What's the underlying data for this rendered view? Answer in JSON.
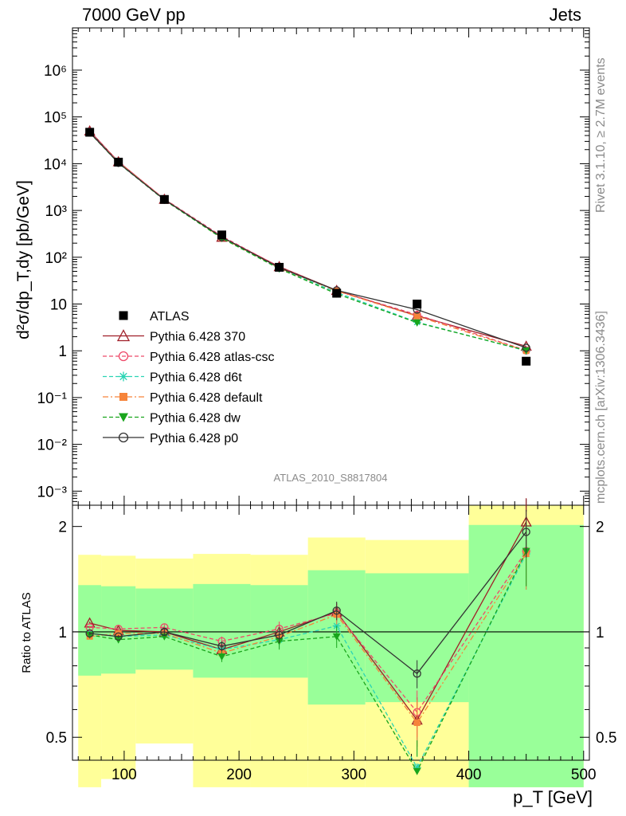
{
  "header": {
    "left": "7000 GeV pp",
    "right": "Jets"
  },
  "side_text": {
    "rivet": "Rivet 3.1.10, ≥ 2.7M events",
    "mcplots": "mcplots.cern.ch [arXiv:1306.3436]"
  },
  "analysis_label": "ATLAS_2010_S8817804",
  "colors": {
    "data": "#000000",
    "p370": "#a01f28",
    "atlas_csc": "#ee4a6a",
    "d6t": "#2ad4b4",
    "default": "#f6843a",
    "dw": "#19a51c",
    "p0": "#333333",
    "band_yellow": "#ffff99",
    "band_green": "#99ff99"
  },
  "chart_data": [
    {
      "type": "line",
      "panel": "main",
      "log_y": true,
      "xlim": [
        55,
        505
      ],
      "ylim": [
        0.0005,
        8000000
      ],
      "ylabel": "d²σ/dp_T,dy [pb/GeV]",
      "ytick_labels": [
        "10⁻³",
        "10⁻²",
        "10⁻¹",
        "1",
        "10",
        "10²",
        "10³",
        "10⁴",
        "10⁵",
        "10⁶"
      ],
      "ytick_values": [
        0.001,
        0.01,
        0.1,
        1,
        10,
        100,
        1000,
        10000,
        100000,
        1000000
      ],
      "x": [
        70,
        95,
        135,
        185,
        235,
        285,
        355,
        450
      ],
      "data": {
        "name": "ATLAS",
        "values": [
          47000,
          10800,
          1720,
          300,
          61,
          17,
          10,
          0.6
        ]
      },
      "series": [
        {
          "name": "Pythia 6.428 370",
          "key": "p370",
          "marker": "triangle-open",
          "dash": "solid",
          "values": [
            50000,
            11000,
            1730,
            268,
            63,
            19.5,
            5.6,
            1.25
          ]
        },
        {
          "name": "Pythia 6.428 atlas-csc",
          "key": "atlas_csc",
          "marker": "circle-open",
          "dash": "dashed",
          "values": [
            48500,
            11000,
            1760,
            282,
            62,
            19.3,
            5.9,
            1.02
          ]
        },
        {
          "name": "Pythia 6.428 d6t",
          "key": "d6t",
          "marker": "star",
          "dash": "dashed",
          "values": [
            46500,
            10500,
            1690,
            267,
            58,
            17.7,
            4.1,
            1.0
          ]
        },
        {
          "name": "Pythia 6.428 default",
          "key": "default",
          "marker": "square",
          "dash": "dashdot",
          "values": [
            45500,
            10700,
            1710,
            262,
            59,
            19.0,
            5.5,
            1.0
          ]
        },
        {
          "name": "Pythia 6.428 dw",
          "key": "dw",
          "marker": "triangle-down",
          "dash": "dashed",
          "values": [
            46000,
            10300,
            1670,
            255,
            57,
            16.5,
            4.0,
            1.02
          ]
        },
        {
          "name": "Pythia 6.428 p0",
          "key": "p0",
          "marker": "circle-open",
          "dash": "solid",
          "values": [
            46500,
            10400,
            1700,
            270,
            60,
            19.6,
            7.6,
            1.16
          ]
        }
      ]
    },
    {
      "type": "line",
      "panel": "ratio",
      "log_y": true,
      "xlim": [
        55,
        505
      ],
      "ylim": [
        0.43,
        2.3
      ],
      "ylabel": "Ratio to ATLAS",
      "xlabel": "p_T [GeV]",
      "xticks": [
        100,
        200,
        300,
        400,
        500
      ],
      "xtick_labels": [
        "100",
        "200",
        "300",
        "400",
        "500"
      ],
      "ytick_labels": [
        "0.5",
        "1",
        "2"
      ],
      "ytick_values": [
        0.5,
        1,
        2
      ],
      "reference_line": 1,
      "bins": [
        {
          "x": [
            60,
            80
          ],
          "yellow": [
            0.36,
            1.66
          ],
          "green": [
            0.75,
            1.36
          ]
        },
        {
          "x": [
            80,
            110
          ],
          "yellow": [
            0.38,
            1.65
          ],
          "green": [
            0.76,
            1.35
          ]
        },
        {
          "x": [
            110,
            160
          ],
          "yellow": [
            0.48,
            1.62
          ],
          "green": [
            0.78,
            1.33
          ]
        },
        {
          "x": [
            160,
            210
          ],
          "yellow": [
            0.36,
            1.67
          ],
          "green": [
            0.74,
            1.37
          ]
        },
        {
          "x": [
            210,
            260
          ],
          "yellow": [
            0.36,
            1.66
          ],
          "green": [
            0.74,
            1.36
          ]
        },
        {
          "x": [
            260,
            310
          ],
          "yellow": [
            0.36,
            1.86
          ],
          "green": [
            0.62,
            1.5
          ]
        },
        {
          "x": [
            310,
            400
          ],
          "yellow": [
            0.36,
            1.83
          ],
          "green": [
            0.63,
            1.47
          ]
        },
        {
          "x": [
            400,
            500
          ],
          "yellow": [
            0.36,
            2.3
          ],
          "green": [
            0.36,
            2.02
          ]
        }
      ],
      "x": [
        70,
        95,
        135,
        185,
        235,
        285,
        355,
        450
      ],
      "series": [
        {
          "name": "Pythia 6.428 370",
          "key": "p370",
          "values": [
            1.06,
            1.01,
            1.0,
            0.89,
            1.0,
            1.14,
            0.56,
            2.06
          ],
          "err": [
            0.01,
            0.01,
            0.02,
            0.03,
            0.05,
            0.07,
            0.09,
            0.35
          ]
        },
        {
          "name": "Pythia 6.428 atlas-csc",
          "key": "atlas_csc",
          "values": [
            1.03,
            1.02,
            1.03,
            0.94,
            1.02,
            1.13,
            0.59,
            1.7
          ],
          "err": [
            0.01,
            0.01,
            0.02,
            0.03,
            0.05,
            0.07,
            0.09,
            0.35
          ]
        },
        {
          "name": "Pythia 6.428 d6t",
          "key": "d6t",
          "values": [
            0.99,
            0.97,
            0.98,
            0.89,
            0.95,
            1.04,
            0.41,
            1.67
          ],
          "err": [
            0.01,
            0.01,
            0.02,
            0.03,
            0.05,
            0.07,
            0.09,
            0.35
          ]
        },
        {
          "name": "Pythia 6.428 default",
          "key": "default",
          "values": [
            0.97,
            0.99,
            0.99,
            0.87,
            0.97,
            1.12,
            0.55,
            1.67
          ],
          "err": [
            0.01,
            0.01,
            0.02,
            0.03,
            0.05,
            0.07,
            0.09,
            0.35
          ]
        },
        {
          "name": "Pythia 6.428 dw",
          "key": "dw",
          "values": [
            0.98,
            0.95,
            0.97,
            0.85,
            0.94,
            0.97,
            0.4,
            1.7
          ],
          "err": [
            0.01,
            0.01,
            0.02,
            0.03,
            0.05,
            0.07,
            0.09,
            0.35
          ]
        },
        {
          "name": "Pythia 6.428 p0",
          "key": "p0",
          "values": [
            0.99,
            0.97,
            1.0,
            0.91,
            0.98,
            1.15,
            0.76,
            1.93
          ],
          "err": [
            0.01,
            0.01,
            0.02,
            0.03,
            0.05,
            0.07,
            0.07,
            0.3
          ]
        }
      ]
    }
  ]
}
